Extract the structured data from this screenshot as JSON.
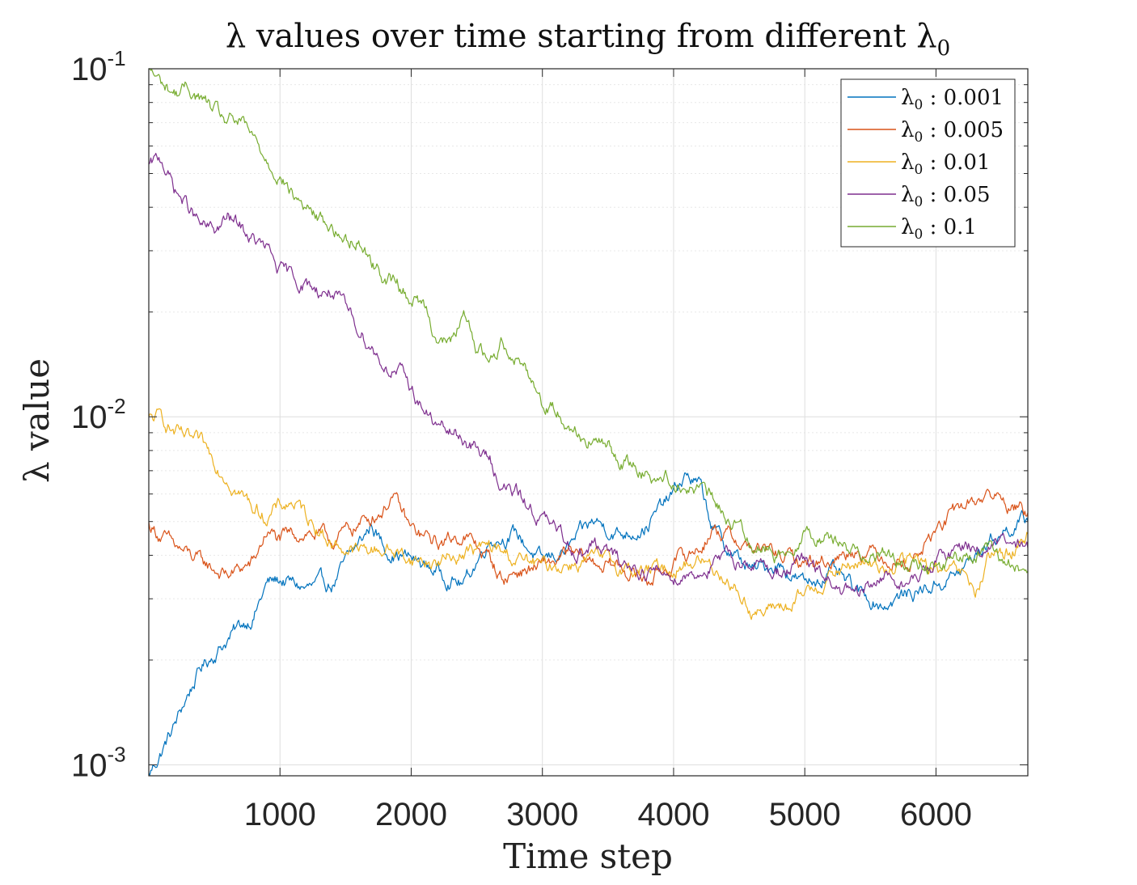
{
  "chart_data": {
    "type": "line",
    "title": "λ values over time starting from different λ₀",
    "title_parts": {
      "main": "λ values over time starting from different λ",
      "sub": "0"
    },
    "xlabel": "Time step",
    "ylabel": "λ value",
    "xlim": [
      0,
      6700
    ],
    "ylim": [
      0.00093,
      0.1
    ],
    "yscale": "log",
    "grid": true,
    "legend_position": "top-right",
    "x_ticks": [
      1000,
      2000,
      3000,
      4000,
      5000,
      6000
    ],
    "x_tick_labels": [
      "1000",
      "2000",
      "3000",
      "4000",
      "5000",
      "6000"
    ],
    "y_ticks": [
      0.001,
      0.01,
      0.1
    ],
    "y_tick_labels": [
      {
        "base": "10",
        "exp": "-3"
      },
      {
        "base": "10",
        "exp": "-2"
      },
      {
        "base": "10",
        "exp": "-1"
      }
    ],
    "series": [
      {
        "name": "λ0 : 0.001",
        "legend": {
          "sym": "λ",
          "sub": "0",
          "value": " : 0.001"
        },
        "color": "#0072BD",
        "x": [
          0,
          100,
          200,
          300,
          400,
          500,
          600,
          700,
          800,
          900,
          1000,
          1200,
          1400,
          1600,
          1700,
          1800,
          2000,
          2200,
          2400,
          2600,
          2800,
          3000,
          3200,
          3400,
          3600,
          3800,
          4000,
          4100,
          4200,
          4300,
          4400,
          4600,
          4800,
          5000,
          5200,
          5400,
          5600,
          5800,
          6000,
          6200,
          6400,
          6600,
          6700
        ],
        "y": [
          0.00093,
          0.0011,
          0.0013,
          0.0016,
          0.0019,
          0.0021,
          0.0023,
          0.0025,
          0.0027,
          0.0033,
          0.0034,
          0.0032,
          0.0033,
          0.0043,
          0.0049,
          0.0042,
          0.0039,
          0.0036,
          0.0033,
          0.0045,
          0.0046,
          0.0038,
          0.0042,
          0.005,
          0.0046,
          0.0049,
          0.006,
          0.0068,
          0.0063,
          0.0048,
          0.0042,
          0.0036,
          0.0038,
          0.0033,
          0.0036,
          0.0031,
          0.0029,
          0.0031,
          0.0033,
          0.0036,
          0.0044,
          0.0049,
          0.005
        ]
      },
      {
        "name": "λ0 : 0.005",
        "legend": {
          "sym": "λ",
          "sub": "0",
          "value": " : 0.005"
        },
        "color": "#D95319",
        "x": [
          0,
          200,
          400,
          600,
          800,
          900,
          1000,
          1200,
          1400,
          1600,
          1800,
          1850,
          2000,
          2200,
          2400,
          2600,
          2700,
          2800,
          3000,
          3200,
          3400,
          3600,
          3800,
          4000,
          4200,
          4300,
          4400,
          4600,
          4800,
          5000,
          5200,
          5400,
          5600,
          5800,
          6000,
          6200,
          6400,
          6600,
          6700
        ],
        "y": [
          0.0049,
          0.0042,
          0.0038,
          0.0035,
          0.0038,
          0.0047,
          0.0044,
          0.0047,
          0.0044,
          0.0049,
          0.0055,
          0.006,
          0.0047,
          0.0043,
          0.0046,
          0.0039,
          0.0034,
          0.0036,
          0.0037,
          0.004,
          0.0038,
          0.0037,
          0.0034,
          0.0038,
          0.0042,
          0.0048,
          0.0046,
          0.0042,
          0.004,
          0.0038,
          0.0039,
          0.0042,
          0.004,
          0.0038,
          0.0047,
          0.0055,
          0.006,
          0.0055,
          0.0053
        ]
      },
      {
        "name": "λ0 : 0.01",
        "legend": {
          "sym": "λ",
          "sub": "0",
          "value": " : 0.01"
        },
        "color": "#EDB120",
        "x": [
          0,
          100,
          200,
          300,
          400,
          500,
          600,
          700,
          800,
          900,
          1000,
          1100,
          1200,
          1300,
          1400,
          1600,
          1800,
          2000,
          2200,
          2400,
          2600,
          2800,
          3000,
          3200,
          3400,
          3600,
          3800,
          4000,
          4200,
          4400,
          4500,
          4600,
          4700,
          4800,
          4900,
          5000,
          5200,
          5400,
          5600,
          5800,
          6000,
          6200,
          6300,
          6400,
          6600,
          6700
        ],
        "y": [
          0.0098,
          0.0099,
          0.009,
          0.0085,
          0.0082,
          0.0075,
          0.0068,
          0.006,
          0.0055,
          0.0052,
          0.0055,
          0.0057,
          0.0052,
          0.0048,
          0.0043,
          0.0041,
          0.0042,
          0.0039,
          0.0038,
          0.0041,
          0.0042,
          0.0039,
          0.0037,
          0.0038,
          0.0039,
          0.0037,
          0.0036,
          0.0037,
          0.0039,
          0.0035,
          0.0031,
          0.0028,
          0.0027,
          0.0029,
          0.0028,
          0.0031,
          0.0035,
          0.0038,
          0.0037,
          0.0039,
          0.0036,
          0.0035,
          0.0031,
          0.0038,
          0.0042,
          0.0046
        ]
      },
      {
        "name": "λ0 : 0.05",
        "legend": {
          "sym": "λ",
          "sub": "0",
          "value": " : 0.05"
        },
        "color": "#7E2F8E",
        "x": [
          0,
          100,
          200,
          300,
          400,
          500,
          600,
          700,
          800,
          900,
          1000,
          1100,
          1200,
          1300,
          1400,
          1500,
          1600,
          1700,
          1800,
          1900,
          2000,
          2100,
          2200,
          2300,
          2400,
          2500,
          2600,
          2700,
          2800,
          2900,
          3000,
          3100,
          3200,
          3300,
          3400,
          3600,
          3800,
          4000,
          4200,
          4400,
          4600,
          4800,
          5000,
          5200,
          5400,
          5600,
          5800,
          6000,
          6200,
          6400,
          6600,
          6700
        ],
        "y": [
          0.052,
          0.055,
          0.045,
          0.04,
          0.035,
          0.034,
          0.037,
          0.035,
          0.032,
          0.03,
          0.026,
          0.025,
          0.024,
          0.023,
          0.023,
          0.02,
          0.018,
          0.016,
          0.014,
          0.0135,
          0.012,
          0.0105,
          0.0093,
          0.009,
          0.0087,
          0.008,
          0.0075,
          0.0063,
          0.006,
          0.0055,
          0.0051,
          0.0047,
          0.0043,
          0.0041,
          0.0043,
          0.0038,
          0.0036,
          0.0035,
          0.0036,
          0.0039,
          0.0038,
          0.0036,
          0.0038,
          0.0033,
          0.003,
          0.0035,
          0.0033,
          0.0038,
          0.0043,
          0.0042,
          0.0043,
          0.0042
        ]
      },
      {
        "name": "λ0 : 0.1",
        "legend": {
          "sym": "λ",
          "sub": "0",
          "value": " : 0.1"
        },
        "color": "#77AC30",
        "x": [
          0,
          100,
          200,
          300,
          400,
          500,
          600,
          700,
          800,
          900,
          1000,
          1100,
          1200,
          1300,
          1400,
          1500,
          1600,
          1700,
          1800,
          1900,
          2000,
          2100,
          2200,
          2300,
          2350,
          2400,
          2500,
          2600,
          2700,
          2800,
          2900,
          3000,
          3100,
          3200,
          3300,
          3400,
          3500,
          3600,
          3700,
          3800,
          3900,
          4000,
          4100,
          4200,
          4300,
          4400,
          4600,
          4800,
          5000,
          5200,
          5400,
          5600,
          5800,
          6000,
          6200,
          6400,
          6600,
          6700
        ],
        "y": [
          0.1,
          0.09,
          0.085,
          0.088,
          0.082,
          0.075,
          0.07,
          0.07,
          0.062,
          0.055,
          0.05,
          0.043,
          0.04,
          0.037,
          0.035,
          0.032,
          0.033,
          0.028,
          0.025,
          0.024,
          0.022,
          0.021,
          0.017,
          0.016,
          0.018,
          0.019,
          0.016,
          0.0145,
          0.0165,
          0.015,
          0.0135,
          0.011,
          0.0105,
          0.0097,
          0.0088,
          0.0085,
          0.0081,
          0.0075,
          0.0072,
          0.0069,
          0.0068,
          0.0066,
          0.0063,
          0.0062,
          0.0057,
          0.0052,
          0.0044,
          0.004,
          0.0047,
          0.0045,
          0.0041,
          0.0041,
          0.0036,
          0.0037,
          0.0039,
          0.0041,
          0.0037,
          0.0036
        ]
      }
    ]
  }
}
